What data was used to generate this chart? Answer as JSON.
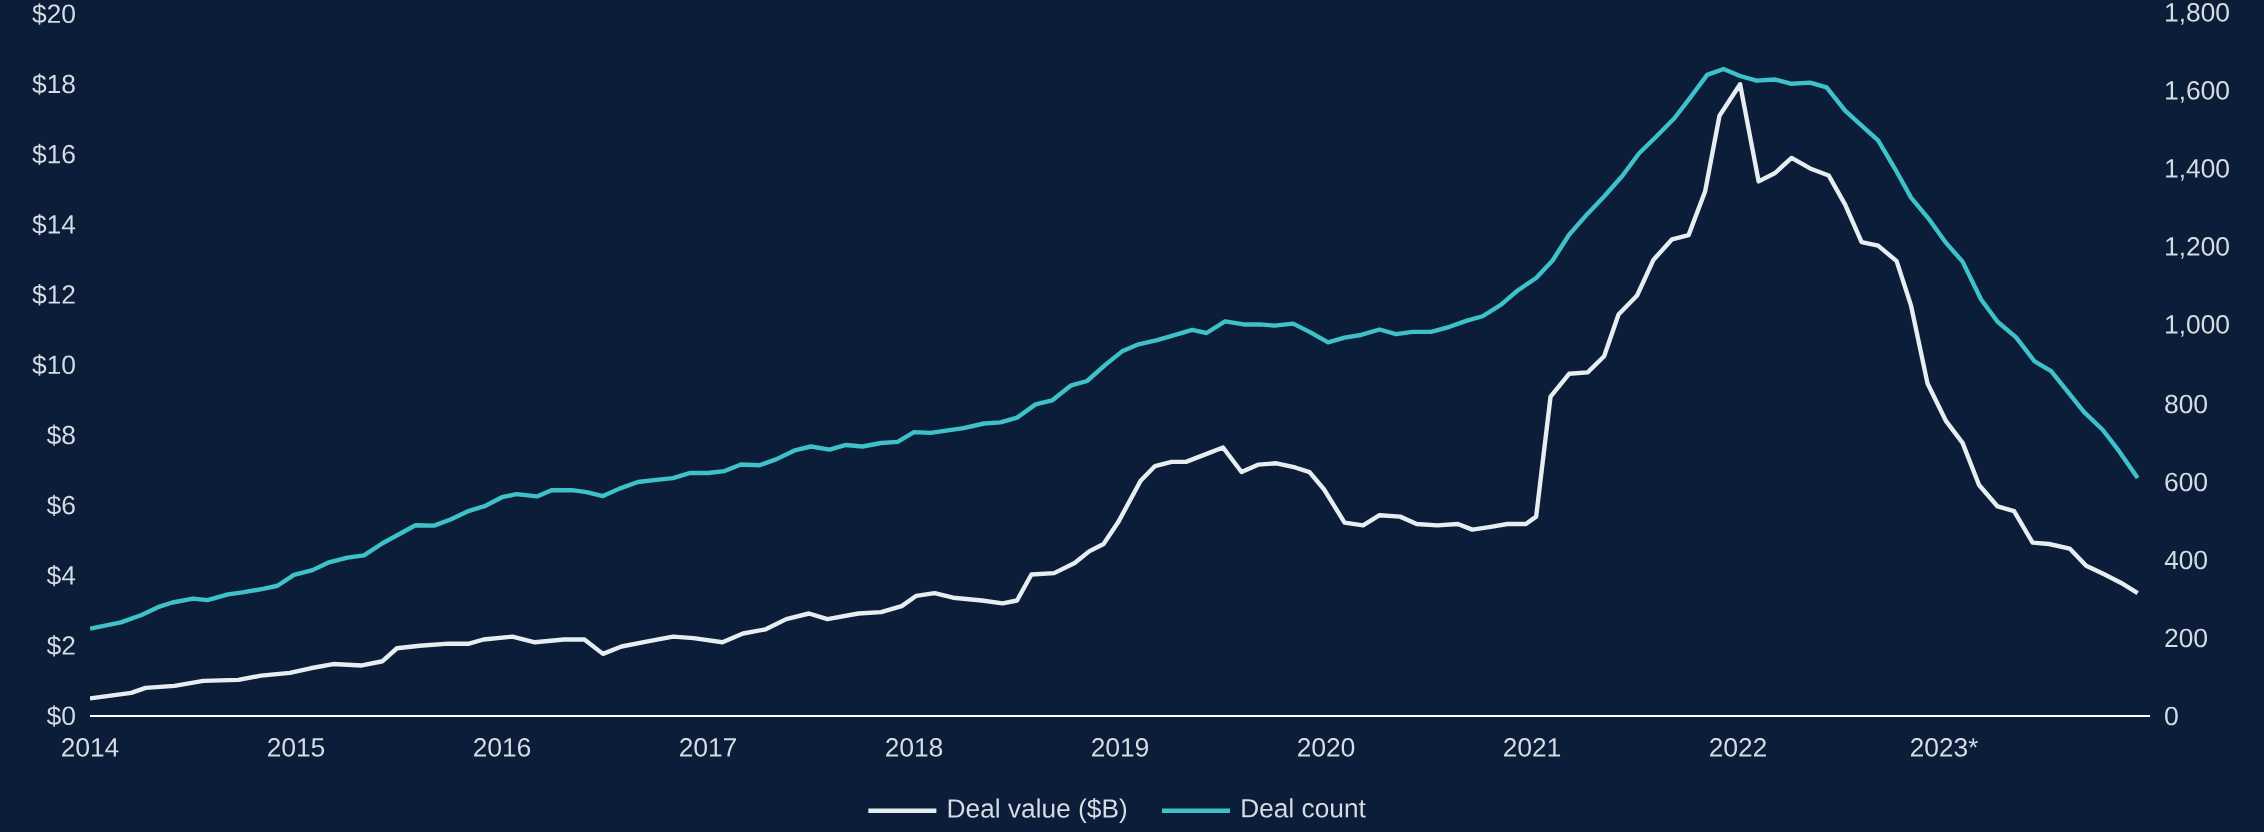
{
  "chart_data": {
    "type": "line",
    "xlim": [
      2014,
      2024
    ],
    "xticks": [
      2014,
      2015,
      2016,
      2017,
      2018,
      2019,
      2020,
      2021,
      2022,
      {
        "value": 2023,
        "label": "2023*"
      }
    ],
    "ylim": [
      0,
      20
    ],
    "yticks": [
      {
        "value": 0,
        "label": "$0"
      },
      {
        "value": 2,
        "label": "$2"
      },
      {
        "value": 4,
        "label": "$4"
      },
      {
        "value": 6,
        "label": "$6"
      },
      {
        "value": 8,
        "label": "$8"
      },
      {
        "value": 10,
        "label": "$10"
      },
      {
        "value": 12,
        "label": "$12"
      },
      {
        "value": 14,
        "label": "$14"
      },
      {
        "value": 16,
        "label": "$16"
      },
      {
        "value": 18,
        "label": "$18"
      },
      {
        "value": 20,
        "label": "$20"
      }
    ],
    "y2lim": [
      0,
      1800
    ],
    "y2ticks": [
      0,
      200,
      400,
      600,
      800,
      {
        "value": 1000,
        "label": "1,000"
      },
      {
        "value": 1200,
        "label": "1,200"
      },
      {
        "value": 1400,
        "label": "1,400"
      },
      {
        "value": 1600,
        "label": "1,600"
      },
      {
        "value": 1800,
        "label": "1,800"
      }
    ],
    "legend": "bottom",
    "grid": false,
    "series": [
      {
        "name": "Deal value ($B)",
        "color": "#e6eef2",
        "x": [
          2014.0,
          2014.2,
          2014.27,
          2014.41,
          2014.55,
          2014.72,
          2014.83,
          2014.97,
          2015.07,
          2015.18,
          2015.32,
          2015.42,
          2015.49,
          2015.6,
          2015.74,
          2015.84,
          2015.91,
          2016.05,
          2016.16,
          2016.3,
          2016.4,
          2016.49,
          2016.58,
          2016.72,
          2016.83,
          2016.93,
          2017.07,
          2017.17,
          2017.28,
          2017.38,
          2017.49,
          2017.58,
          2017.73,
          2017.84,
          2017.94,
          2018.01,
          2018.1,
          2018.19,
          2018.33,
          2018.43,
          2018.5,
          2018.57,
          2018.68,
          2018.78,
          2018.85,
          2018.92,
          2018.99,
          2019.1,
          2019.17,
          2019.25,
          2019.32,
          2019.43,
          2019.5,
          2019.59,
          2019.67,
          2019.76,
          2019.85,
          2019.92,
          2019.99,
          2020.09,
          2020.18,
          2020.26,
          2020.36,
          2020.44,
          2020.54,
          2020.64,
          2020.71,
          2020.8,
          2020.88,
          2020.97,
          2021.02,
          2021.09,
          2021.18,
          2021.27,
          2021.35,
          2021.42,
          2021.51,
          2021.59,
          2021.68,
          2021.76,
          2021.84,
          2021.91,
          2022.01,
          2022.1,
          2022.18,
          2022.26,
          2022.35,
          2022.44,
          2022.52,
          2022.6,
          2022.68,
          2022.77,
          2022.84,
          2022.92,
          2023.01,
          2023.09,
          2023.17,
          2023.26,
          2023.34,
          2023.43,
          2023.51,
          2023.61,
          2023.69,
          2023.78,
          2023.86,
          2023.94
        ],
        "values": [
          0.5,
          0.66,
          0.8,
          0.86,
          1.0,
          1.03,
          1.15,
          1.23,
          1.36,
          1.48,
          1.44,
          1.56,
          1.93,
          2.0,
          2.06,
          2.06,
          2.18,
          2.26,
          2.1,
          2.18,
          2.18,
          1.77,
          1.98,
          2.14,
          2.26,
          2.22,
          2.1,
          2.35,
          2.47,
          2.76,
          2.92,
          2.76,
          2.92,
          2.96,
          3.13,
          3.42,
          3.5,
          3.37,
          3.29,
          3.21,
          3.29,
          4.03,
          4.07,
          4.36,
          4.69,
          4.9,
          5.51,
          6.7,
          7.12,
          7.24,
          7.24,
          7.49,
          7.65,
          6.95,
          7.16,
          7.2,
          7.08,
          6.95,
          6.46,
          5.51,
          5.43,
          5.72,
          5.68,
          5.47,
          5.43,
          5.47,
          5.31,
          5.39,
          5.47,
          5.47,
          5.68,
          9.1,
          9.75,
          9.79,
          10.25,
          11.44,
          11.98,
          13.0,
          13.58,
          13.7,
          14.94,
          17.1,
          18.0,
          15.23,
          15.47,
          15.9,
          15.6,
          15.4,
          14.57,
          13.5,
          13.4,
          12.96,
          11.69,
          9.47,
          8.4,
          7.78,
          6.58,
          5.97,
          5.84,
          4.94,
          4.9,
          4.77,
          4.28,
          4.03,
          3.79,
          3.5
        ]
      },
      {
        "name": "Deal count",
        "color": "#3fc1c9",
        "axis": "y2",
        "x": [
          2014.0,
          2014.15,
          2014.25,
          2014.33,
          2014.4,
          2014.5,
          2014.57,
          2014.67,
          2014.74,
          2014.84,
          2014.91,
          2014.99,
          2015.08,
          2015.16,
          2015.25,
          2015.33,
          2015.42,
          2015.5,
          2015.58,
          2015.67,
          2015.75,
          2015.84,
          2015.92,
          2016.0,
          2016.07,
          2016.17,
          2016.24,
          2016.34,
          2016.41,
          2016.49,
          2016.57,
          2016.66,
          2016.76,
          2016.83,
          2016.91,
          2017.0,
          2017.08,
          2017.16,
          2017.25,
          2017.33,
          2017.42,
          2017.5,
          2017.59,
          2017.67,
          2017.75,
          2017.84,
          2017.92,
          2018.0,
          2018.08,
          2018.24,
          2018.34,
          2018.42,
          2018.5,
          2018.59,
          2018.67,
          2018.76,
          2018.84,
          2018.93,
          2019.01,
          2019.09,
          2019.18,
          2019.26,
          2019.35,
          2019.42,
          2019.51,
          2019.6,
          2019.68,
          2019.75,
          2019.84,
          2019.92,
          2020.01,
          2020.09,
          2020.17,
          2020.26,
          2020.34,
          2020.42,
          2020.51,
          2020.6,
          2020.68,
          2020.76,
          2020.85,
          2020.93,
          2021.02,
          2021.1,
          2021.18,
          2021.27,
          2021.35,
          2021.44,
          2021.52,
          2021.6,
          2021.69,
          2021.77,
          2021.85,
          2021.93,
          2022.01,
          2022.09,
          2022.18,
          2022.26,
          2022.35,
          2022.43,
          2022.52,
          2022.6,
          2022.68,
          2022.76,
          2022.84,
          2022.93,
          2023.01,
          2023.09,
          2023.18,
          2023.26,
          2023.35,
          2023.44,
          2023.52,
          2023.6,
          2023.68,
          2023.77,
          2023.85,
          2023.94
        ],
        "values": [
          224,
          240,
          259,
          279,
          291,
          301,
          297,
          312,
          317,
          326,
          334,
          362,
          374,
          394,
          406,
          412,
          443,
          466,
          489,
          488,
          504,
          526,
          539,
          561,
          569,
          563,
          579,
          579,
          574,
          564,
          583,
          600,
          606,
          610,
          623,
          623,
          628,
          645,
          643,
          658,
          681,
          691,
          683,
          695,
          691,
          700,
          703,
          728,
          726,
          738,
          750,
          753,
          765,
          799,
          809,
          847,
          859,
          901,
          935,
          953,
          964,
          976,
          990,
          982,
          1012,
          1004,
          1004,
          1001,
          1006,
          985,
          958,
          970,
          977,
          991,
          979,
          985,
          985,
          998,
          1013,
          1025,
          1055,
          1091,
          1123,
          1168,
          1234,
          1288,
          1332,
          1386,
          1443,
          1484,
          1532,
          1587,
          1644,
          1659,
          1641,
          1629,
          1632,
          1621,
          1624,
          1612,
          1552,
          1514,
          1476,
          1405,
          1329,
          1272,
          1213,
          1165,
          1068,
          1011,
          971,
          909,
          884,
          832,
          779,
          734,
          679,
          610
        ]
      }
    ]
  }
}
